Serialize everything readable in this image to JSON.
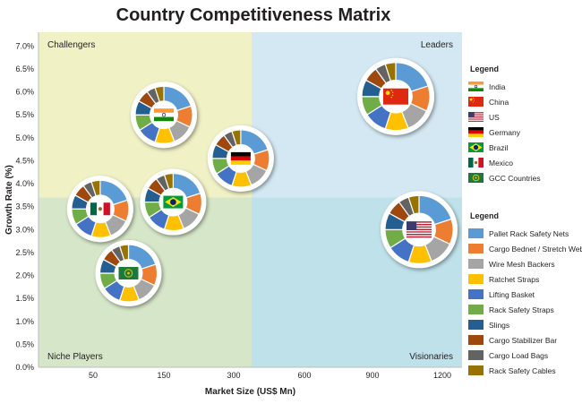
{
  "chart_data": {
    "type": "scatter",
    "title": "Country Competitiveness Matrix",
    "xlabel": "Market Size (US$ Mn)",
    "ylabel": "Growth Rate (%)",
    "x_tick_labels": [
      "50",
      "150",
      "300",
      "600",
      "900",
      "1200"
    ],
    "y_ticks": [
      0.0,
      0.5,
      1.0,
      1.5,
      2.0,
      2.5,
      3.0,
      3.5,
      4.0,
      4.5,
      5.0,
      5.5,
      6.0,
      6.5,
      7.0
    ],
    "y_tick_labels": [
      "0.0%",
      "0.5%",
      "1.0%",
      "1.5%",
      "2.0%",
      "2.5%",
      "3.0%",
      "3.5%",
      "4.0%",
      "4.5%",
      "5.0%",
      "5.5%",
      "6.0%",
      "6.5%",
      "7.0%"
    ],
    "ylim": [
      0,
      7.3
    ],
    "quadrants": {
      "top_left": "Challengers",
      "top_right": "Leaders",
      "bottom_left": "Niche Players",
      "bottom_right": "Visionaries"
    },
    "quadrant_colors": {
      "top_left": "#f1f1c6",
      "top_right": "#d3e8f2",
      "bottom_left": "#d6e6c8",
      "bottom_right": "#bee1ea"
    },
    "points": [
      {
        "country": "India",
        "x": 150,
        "y": 5.5
      },
      {
        "country": "China",
        "x": 1000,
        "y": 5.9
      },
      {
        "country": "US",
        "x": 1100,
        "y": 3.0
      },
      {
        "country": "Germany",
        "x": 330,
        "y": 4.55
      },
      {
        "country": "Brazil",
        "x": 170,
        "y": 3.6
      },
      {
        "country": "Mexico",
        "x": 60,
        "y": 3.45
      },
      {
        "country": "GCC Countries",
        "x": 100,
        "y": 2.05
      }
    ],
    "segments": [
      {
        "name": "Pallet Rack Safety Nets",
        "color": "#5b9bd5"
      },
      {
        "name": "Cargo Bednet / Stretch Web",
        "color": "#ed7d31"
      },
      {
        "name": "Wire Mesh Backers",
        "color": "#a5a5a5"
      },
      {
        "name": "Ratchet Straps",
        "color": "#ffc000"
      },
      {
        "name": "Lifting Basket",
        "color": "#4472c4"
      },
      {
        "name": "Rack Safety Straps",
        "color": "#70ad47"
      },
      {
        "name": "Slings",
        "color": "#255e91"
      },
      {
        "name": "Cargo Stabilizer Bar",
        "color": "#9e480e"
      },
      {
        "name": "Cargo Load Bags",
        "color": "#636363"
      },
      {
        "name": "Rack Safety Cables",
        "color": "#997300"
      }
    ],
    "segment_shares": [
      0.2,
      0.12,
      0.12,
      0.11,
      0.11,
      0.09,
      0.08,
      0.07,
      0.05,
      0.05
    ]
  },
  "legends": {
    "country_title": "Legend",
    "countries": [
      "India",
      "China",
      "US",
      "Germany",
      "Brazil",
      "Mexico",
      "GCC Countries"
    ],
    "segment_title": "Legend"
  }
}
